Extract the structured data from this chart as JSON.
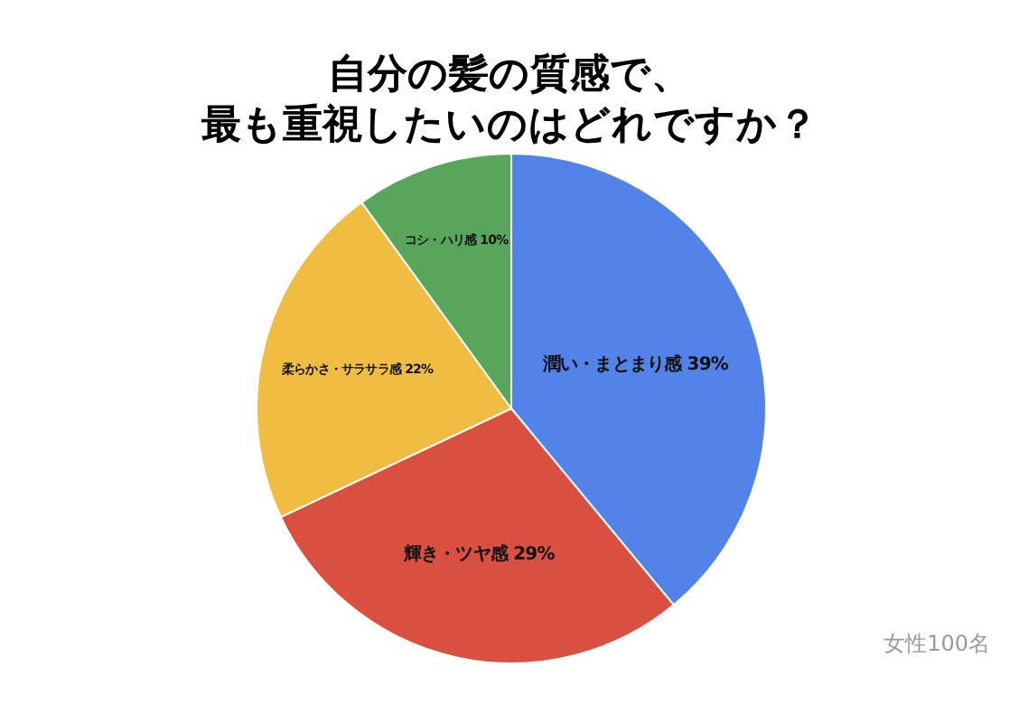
{
  "chart_data": {
    "type": "pie",
    "title": "自分の髪の質感で、最も重視したいのはどれですか？",
    "categories": [
      "潤い・まとまり感",
      "輝き・ツヤ感",
      "柔らかさ・サラサラ感",
      "コシ・ハリ感"
    ],
    "values": [
      39,
      29,
      22,
      10
    ],
    "value_labels": [
      "39%",
      "29%",
      "22%",
      "10%"
    ],
    "colors": [
      "#5283e8",
      "#d95040",
      "#f0bd42",
      "#58a55c"
    ],
    "annotations": [
      "女性100名"
    ]
  }
}
